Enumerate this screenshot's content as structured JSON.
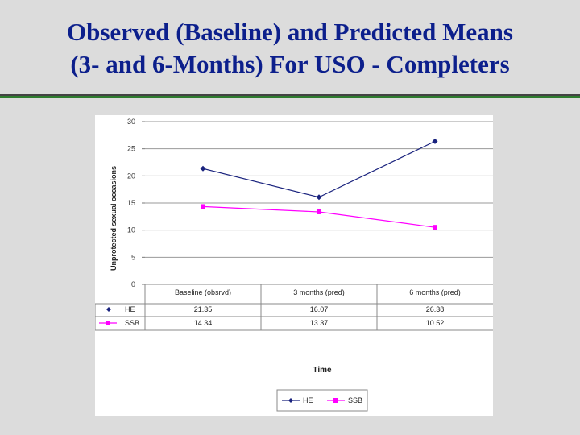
{
  "slide": {
    "title_line1": "Observed (Baseline) and Predicted Means",
    "title_line2": "(3- and 6-Months) For USO - Completers"
  },
  "colors": {
    "title": "#0c1f8c",
    "he_series": "#1a237e",
    "ssb_series": "#ff00ff",
    "rule_green": "#2f7d2f"
  },
  "chart_data": {
    "type": "line",
    "categories": [
      "Baseline (obsrvd)",
      "3 months (pred)",
      "6 months (pred)"
    ],
    "series": [
      {
        "name": "HE",
        "values": [
          21.35,
          16.07,
          26.38
        ],
        "value_labels": [
          "21.35",
          "16.07",
          "26.38"
        ],
        "color": "#1a237e",
        "marker": "diamond"
      },
      {
        "name": "SSB",
        "values": [
          14.34,
          13.37,
          10.52
        ],
        "value_labels": [
          "14.34",
          "13.37",
          "10.52"
        ],
        "color": "#ff00ff",
        "marker": "square"
      }
    ],
    "ylabel": "Unprotected sexual occasions",
    "xlabel": "Time",
    "ylim": [
      0,
      30
    ],
    "yticks": [
      "0",
      "5",
      "10",
      "15",
      "20",
      "25",
      "30"
    ],
    "grid": true,
    "legend": "bottom",
    "data_table": true
  }
}
